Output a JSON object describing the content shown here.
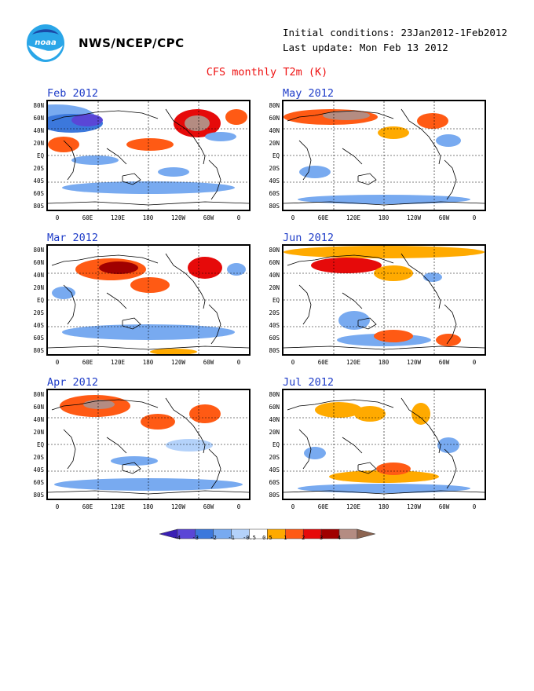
{
  "header": {
    "agency": "NWS/NCEP/CPC",
    "initial_conditions": "Initial conditions: 23Jan2012-1Feb2012",
    "last_update": "Last update: Mon Feb 13 2012",
    "title": "CFS monthly T2m (K)"
  },
  "logo": {
    "icon": "noaa-logo-icon",
    "text": "noaa"
  },
  "colors": {
    "title": "#ee1111",
    "panel_title": "#1e3cc8",
    "bins": [
      "#3a1fb4",
      "#5a46d6",
      "#3c78dc",
      "#78aaf0",
      "#b4d2fa",
      "#ffffff",
      "#ffaa00",
      "#ff5a14",
      "#e60a0a",
      "#a00000",
      "#b48c82",
      "#8c6450"
    ]
  },
  "panels": [
    {
      "title": "Feb 2012"
    },
    {
      "title": "May 2012"
    },
    {
      "title": "Mar 2012"
    },
    {
      "title": "Jun 2012"
    },
    {
      "title": "Apr 2012"
    },
    {
      "title": "Jul 2012"
    }
  ],
  "axes": {
    "lat_labels": [
      "80N",
      "60N",
      "40N",
      "20N",
      "EQ",
      "20S",
      "40S",
      "60S",
      "80S"
    ],
    "lon_labels": [
      "0",
      "60E",
      "120E",
      "180",
      "120W",
      "60W",
      "0"
    ]
  },
  "colorbar": {
    "labels": [
      "-4",
      "-3",
      "-2",
      "-1",
      "-0.5",
      "0.5",
      "1",
      "2",
      "3",
      "4"
    ]
  }
}
